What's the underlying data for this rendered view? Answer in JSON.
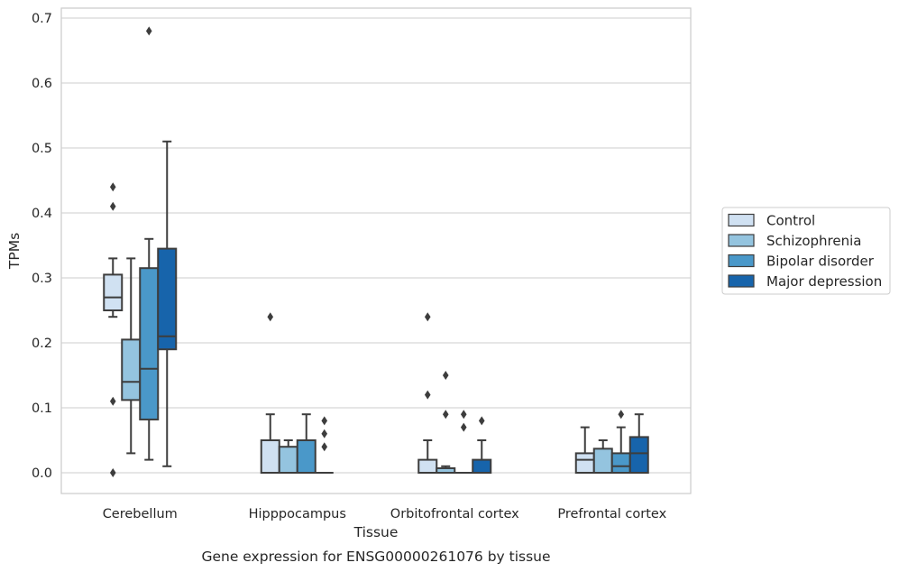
{
  "chart_data": {
    "type": "box",
    "xlabel": "Tissue",
    "ylabel": "TPMs",
    "caption": "Gene expression for ENSG00000261076 by tissue",
    "ylim": [
      -0.035,
      0.72
    ],
    "yticks": [
      0.0,
      0.1,
      0.2,
      0.3,
      0.4,
      0.5,
      0.6,
      0.7
    ],
    "grid": true,
    "legend_position": "right",
    "categories": [
      "Cerebellum",
      "Hipppocampus",
      "Orbitofrontal cortex",
      "Prefrontal cortex"
    ],
    "series": [
      {
        "name": "Control",
        "color": "#d0e1f2",
        "boxes": [
          {
            "q1": 0.25,
            "median": 0.27,
            "q3": 0.305,
            "whislo": 0.24,
            "whishi": 0.33,
            "fliers": [
              0.44,
              0.41,
              0.11,
              0.0
            ]
          },
          {
            "q1": 0.0,
            "median": 0.0,
            "q3": 0.05,
            "whislo": 0.0,
            "whishi": 0.09,
            "fliers": [
              0.24
            ]
          },
          {
            "q1": 0.0,
            "median": 0.0,
            "q3": 0.02,
            "whislo": 0.0,
            "whishi": 0.05,
            "fliers": [
              0.24,
              0.12
            ]
          },
          {
            "q1": 0.0,
            "median": 0.02,
            "q3": 0.03,
            "whislo": 0.0,
            "whishi": 0.07,
            "fliers": []
          }
        ]
      },
      {
        "name": "Schizophrenia",
        "color": "#94c4df",
        "boxes": [
          {
            "q1": 0.112,
            "median": 0.14,
            "q3": 0.205,
            "whislo": 0.03,
            "whishi": 0.33,
            "fliers": []
          },
          {
            "q1": 0.0,
            "median": 0.0,
            "q3": 0.04,
            "whislo": 0.0,
            "whishi": 0.05,
            "fliers": []
          },
          {
            "q1": 0.0,
            "median": 0.0,
            "q3": 0.007,
            "whislo": 0.0,
            "whishi": 0.01,
            "fliers": [
              0.15,
              0.09
            ]
          },
          {
            "q1": 0.0,
            "median": 0.0,
            "q3": 0.037,
            "whislo": 0.0,
            "whishi": 0.05,
            "fliers": []
          }
        ]
      },
      {
        "name": "Bipolar disorder",
        "color": "#4a98c9",
        "boxes": [
          {
            "q1": 0.082,
            "median": 0.16,
            "q3": 0.315,
            "whislo": 0.02,
            "whishi": 0.36,
            "fliers": [
              0.68
            ]
          },
          {
            "q1": 0.0,
            "median": 0.0,
            "q3": 0.05,
            "whislo": 0.0,
            "whishi": 0.09,
            "fliers": []
          },
          {
            "q1": 0.0,
            "median": 0.0,
            "q3": 0.0,
            "whislo": 0.0,
            "whishi": 0.0,
            "fliers": [
              0.09,
              0.07
            ]
          },
          {
            "q1": 0.0,
            "median": 0.01,
            "q3": 0.03,
            "whislo": 0.0,
            "whishi": 0.07,
            "fliers": [
              0.09
            ]
          }
        ]
      },
      {
        "name": "Major depression",
        "color": "#1764ab",
        "boxes": [
          {
            "q1": 0.19,
            "median": 0.21,
            "q3": 0.345,
            "whislo": 0.01,
            "whishi": 0.51,
            "fliers": []
          },
          {
            "q1": 0.0,
            "median": 0.0,
            "q3": 0.0,
            "whislo": 0.0,
            "whishi": 0.0,
            "fliers": [
              0.08,
              0.06,
              0.04
            ]
          },
          {
            "q1": 0.0,
            "median": 0.0,
            "q3": 0.02,
            "whislo": 0.0,
            "whishi": 0.05,
            "fliers": [
              0.08
            ]
          },
          {
            "q1": 0.0,
            "median": 0.03,
            "q3": 0.055,
            "whislo": 0.0,
            "whishi": 0.09,
            "fliers": []
          }
        ]
      }
    ]
  }
}
